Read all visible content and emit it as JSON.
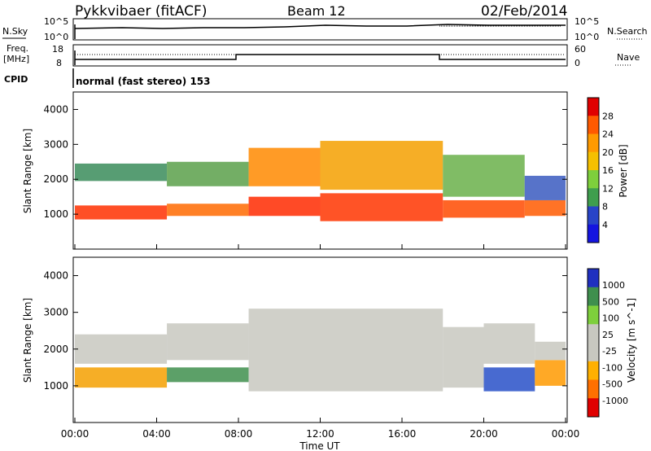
{
  "header": {
    "station": "Pykkvibaer (fitACF)",
    "beam": "Beam 12",
    "date": "02/Feb/2014"
  },
  "top_panels": {
    "nsky_label": "N.Sky",
    "nsearch_label": "N.Search",
    "noise_ticks": [
      "10^5",
      "10^0"
    ],
    "freq_label": "Freq.",
    "freq_unit": "[MHz]",
    "freq_ticks": [
      "18",
      "8"
    ],
    "nave_ticks": [
      "60",
      "0"
    ],
    "nave_label": "Nave",
    "cpid_label": "CPID",
    "cpid_text": "normal (fast stereo) 153"
  },
  "chart_data": [
    {
      "type": "heatmap",
      "name": "power",
      "ylabel": "Slant Range [km]",
      "ylim": [
        0,
        4500
      ],
      "yticks": [
        "4000",
        "3000",
        "2000",
        "1000"
      ],
      "colorbar_label": "Power [dB]",
      "colorbar_ticks": [
        "28",
        "24",
        "20",
        "16",
        "12",
        "8",
        "4"
      ],
      "colorbar_colors": [
        "#e00000",
        "#ff5a00",
        "#ff9a00",
        "#f5c000",
        "#7ecf3c",
        "#3f9e4e",
        "#2844c8",
        "#1414e0"
      ],
      "bands": [
        {
          "hours": [
            0,
            4.5
          ],
          "ranges": [
            [
              850,
              1250,
              "#ff3000"
            ],
            [
              1950,
              2450,
              "#3a8c5a"
            ]
          ]
        },
        {
          "hours": [
            4.5,
            8.5
          ],
          "ranges": [
            [
              950,
              1300,
              "#ff6a00"
            ],
            [
              1800,
              2500,
              "#5aa04a"
            ]
          ]
        },
        {
          "hours": [
            8.5,
            12
          ],
          "ranges": [
            [
              950,
              1500,
              "#ff2a00"
            ],
            [
              1800,
              2900,
              "#ff8a00"
            ]
          ]
        },
        {
          "hours": [
            12,
            18
          ],
          "ranges": [
            [
              800,
              1600,
              "#ff3500"
            ],
            [
              1700,
              3100,
              "#f5a000"
            ]
          ]
        },
        {
          "hours": [
            18,
            22
          ],
          "ranges": [
            [
              900,
              1400,
              "#ff4a00"
            ],
            [
              1500,
              2700,
              "#6ab04a"
            ]
          ]
        },
        {
          "hours": [
            22,
            24
          ],
          "ranges": [
            [
              950,
              1400,
              "#ff5a00"
            ],
            [
              1400,
              2100,
              "#3a5ac0"
            ]
          ]
        }
      ]
    },
    {
      "type": "heatmap",
      "name": "velocity",
      "ylabel": "Slant Range [km]",
      "ylim": [
        0,
        4500
      ],
      "yticks": [
        "4000",
        "3000",
        "2000",
        "1000"
      ],
      "xlabel": "Time UT",
      "xticks": [
        "00:00",
        "04:00",
        "08:00",
        "12:00",
        "16:00",
        "20:00",
        "00:00"
      ],
      "colorbar_label": "Velocity [m s^-1]",
      "colorbar_ticks": [
        "1000",
        "500",
        "100",
        "25",
        "-25",
        "-100",
        "-500",
        "-1000"
      ],
      "colorbar_colors": [
        "#2030c0",
        "#3f8f4e",
        "#7ecf3c",
        "#c8c8c0",
        "#c8c8c0",
        "#ffb000",
        "#ff7000",
        "#e00000"
      ],
      "bands": [
        {
          "hours": [
            0,
            4.5
          ],
          "ranges": [
            [
              950,
              1500,
              "#f5a000"
            ],
            [
              1600,
              2400,
              "#c8c8c0"
            ]
          ]
        },
        {
          "hours": [
            4.5,
            8.5
          ],
          "ranges": [
            [
              1100,
              1500,
              "#3f8f4e"
            ],
            [
              1700,
              2700,
              "#c8c8c0"
            ]
          ]
        },
        {
          "hours": [
            8.5,
            18
          ],
          "ranges": [
            [
              850,
              3100,
              "#c8c8c0"
            ]
          ]
        },
        {
          "hours": [
            18,
            20
          ],
          "ranges": [
            [
              950,
              2600,
              "#c8c8c0"
            ]
          ]
        },
        {
          "hours": [
            20,
            22.5
          ],
          "ranges": [
            [
              850,
              1500,
              "#2850c8"
            ],
            [
              1600,
              2700,
              "#c8c8c0"
            ]
          ]
        },
        {
          "hours": [
            22.5,
            24
          ],
          "ranges": [
            [
              1000,
              1700,
              "#ff9a00"
            ],
            [
              1700,
              2200,
              "#c8c8c0"
            ]
          ]
        }
      ]
    }
  ]
}
